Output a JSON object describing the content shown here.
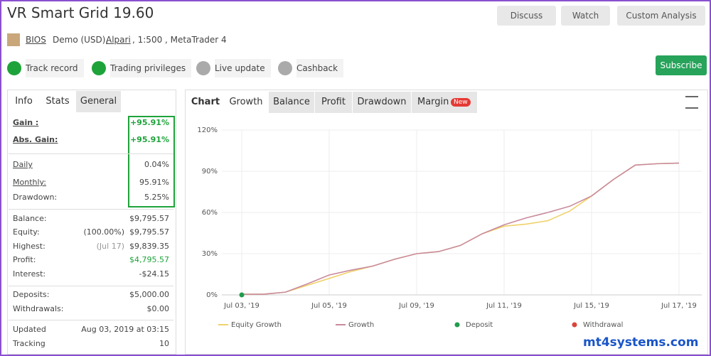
{
  "header": {
    "title": "VR Smart Grid 19.60",
    "buttons": [
      "Discuss",
      "Watch",
      "Custom Analysis"
    ],
    "owner": "BIOS",
    "account": "Demo (USD),",
    "broker": "Alpari",
    "details": ", 1:500 , MetaTrader 4"
  },
  "badges": [
    "Track record",
    "Trading privileges",
    "Live update",
    "Cashback"
  ],
  "subscribe": "Subscribe",
  "stats": {
    "tabs": [
      "Info",
      "Stats",
      "General"
    ],
    "groups": [
      [
        {
          "label": "Gain :",
          "value": "+95.91%"
        },
        {
          "label": "Abs. Gain:",
          "value": "+95.91%"
        }
      ],
      [
        {
          "label": "Daily",
          "value": "0.04%"
        },
        {
          "label": "Monthly:",
          "value": "95.91%"
        },
        {
          "label": "Drawdown:",
          "value": "5.25%"
        }
      ],
      [
        {
          "label": "Balance:",
          "value": "$9,795.57"
        },
        {
          "label": "Equity:",
          "note": "(100.00%)",
          "value": "$9,795.57"
        },
        {
          "label": "Highest:",
          "note": "(Jul 17)",
          "value": "$9,839.35"
        },
        {
          "label": "Profit:",
          "value": "$4,795.57"
        },
        {
          "label": "Interest:",
          "value": "-$24.15"
        }
      ],
      [
        {
          "label": "Deposits:",
          "value": "$5,000.00"
        },
        {
          "label": "Withdrawals:",
          "value": "$0.00"
        }
      ],
      [
        {
          "label": "Updated",
          "value": "Aug 03, 2019 at 03:15"
        },
        {
          "label": "Tracking",
          "value": "10"
        }
      ]
    ]
  },
  "chart_tabs": [
    "Chart",
    "Growth",
    "Balance",
    "Profit",
    "Drawdown",
    "Margin"
  ],
  "chart_tab_badge": "New",
  "watermark": "mt4systems.com",
  "chart_data": {
    "type": "line",
    "categories": [
      "Jul 03, '19",
      null,
      null,
      null,
      "Jul 05, '19",
      null,
      null,
      null,
      "Jul 09, '19",
      null,
      null,
      null,
      "Jul 11, '19",
      null,
      null,
      null,
      "Jul 15, '19",
      null,
      null,
      null,
      "Jul 17, '19"
    ],
    "series": [
      {
        "name": "Equity Growth",
        "color": "#f0d26a",
        "mode": "line",
        "values": [
          0.5,
          0.5,
          2,
          7,
          12,
          17,
          21,
          26,
          30,
          31.5,
          36,
          44.5,
          50,
          51.5,
          54,
          61,
          72,
          84,
          94.5,
          95.5,
          95.9
        ]
      },
      {
        "name": "Growth",
        "color": "#c98a9c",
        "mode": "line",
        "values": [
          0.5,
          0.5,
          2,
          8,
          14.5,
          18,
          21,
          26,
          30,
          31.5,
          36,
          44.5,
          51,
          56,
          60,
          64.5,
          72,
          84,
          94.5,
          95.5,
          95.9
        ]
      },
      {
        "name": "Deposit",
        "color": "#1f9d4c",
        "mode": "point",
        "values": [
          0,
          null,
          null,
          null,
          null,
          null,
          null,
          null,
          null,
          null,
          null,
          null,
          null,
          null,
          null,
          null,
          null,
          null,
          null,
          null,
          null
        ]
      },
      {
        "name": "Withdrawal",
        "color": "#d9453b",
        "mode": "point",
        "values": [
          null,
          null,
          null,
          null,
          null,
          null,
          null,
          null,
          null,
          null,
          null,
          null,
          null,
          null,
          null,
          null,
          null,
          null,
          null,
          null,
          null
        ]
      }
    ],
    "ylim": [
      0,
      120
    ],
    "yticks": [
      {
        "value": 0,
        "label": "0%"
      },
      {
        "value": 30,
        "label": "30%"
      },
      {
        "value": 60,
        "label": "60%"
      },
      {
        "value": 90,
        "label": "90%"
      },
      {
        "value": 120,
        "label": "120%"
      }
    ],
    "grid": true
  }
}
